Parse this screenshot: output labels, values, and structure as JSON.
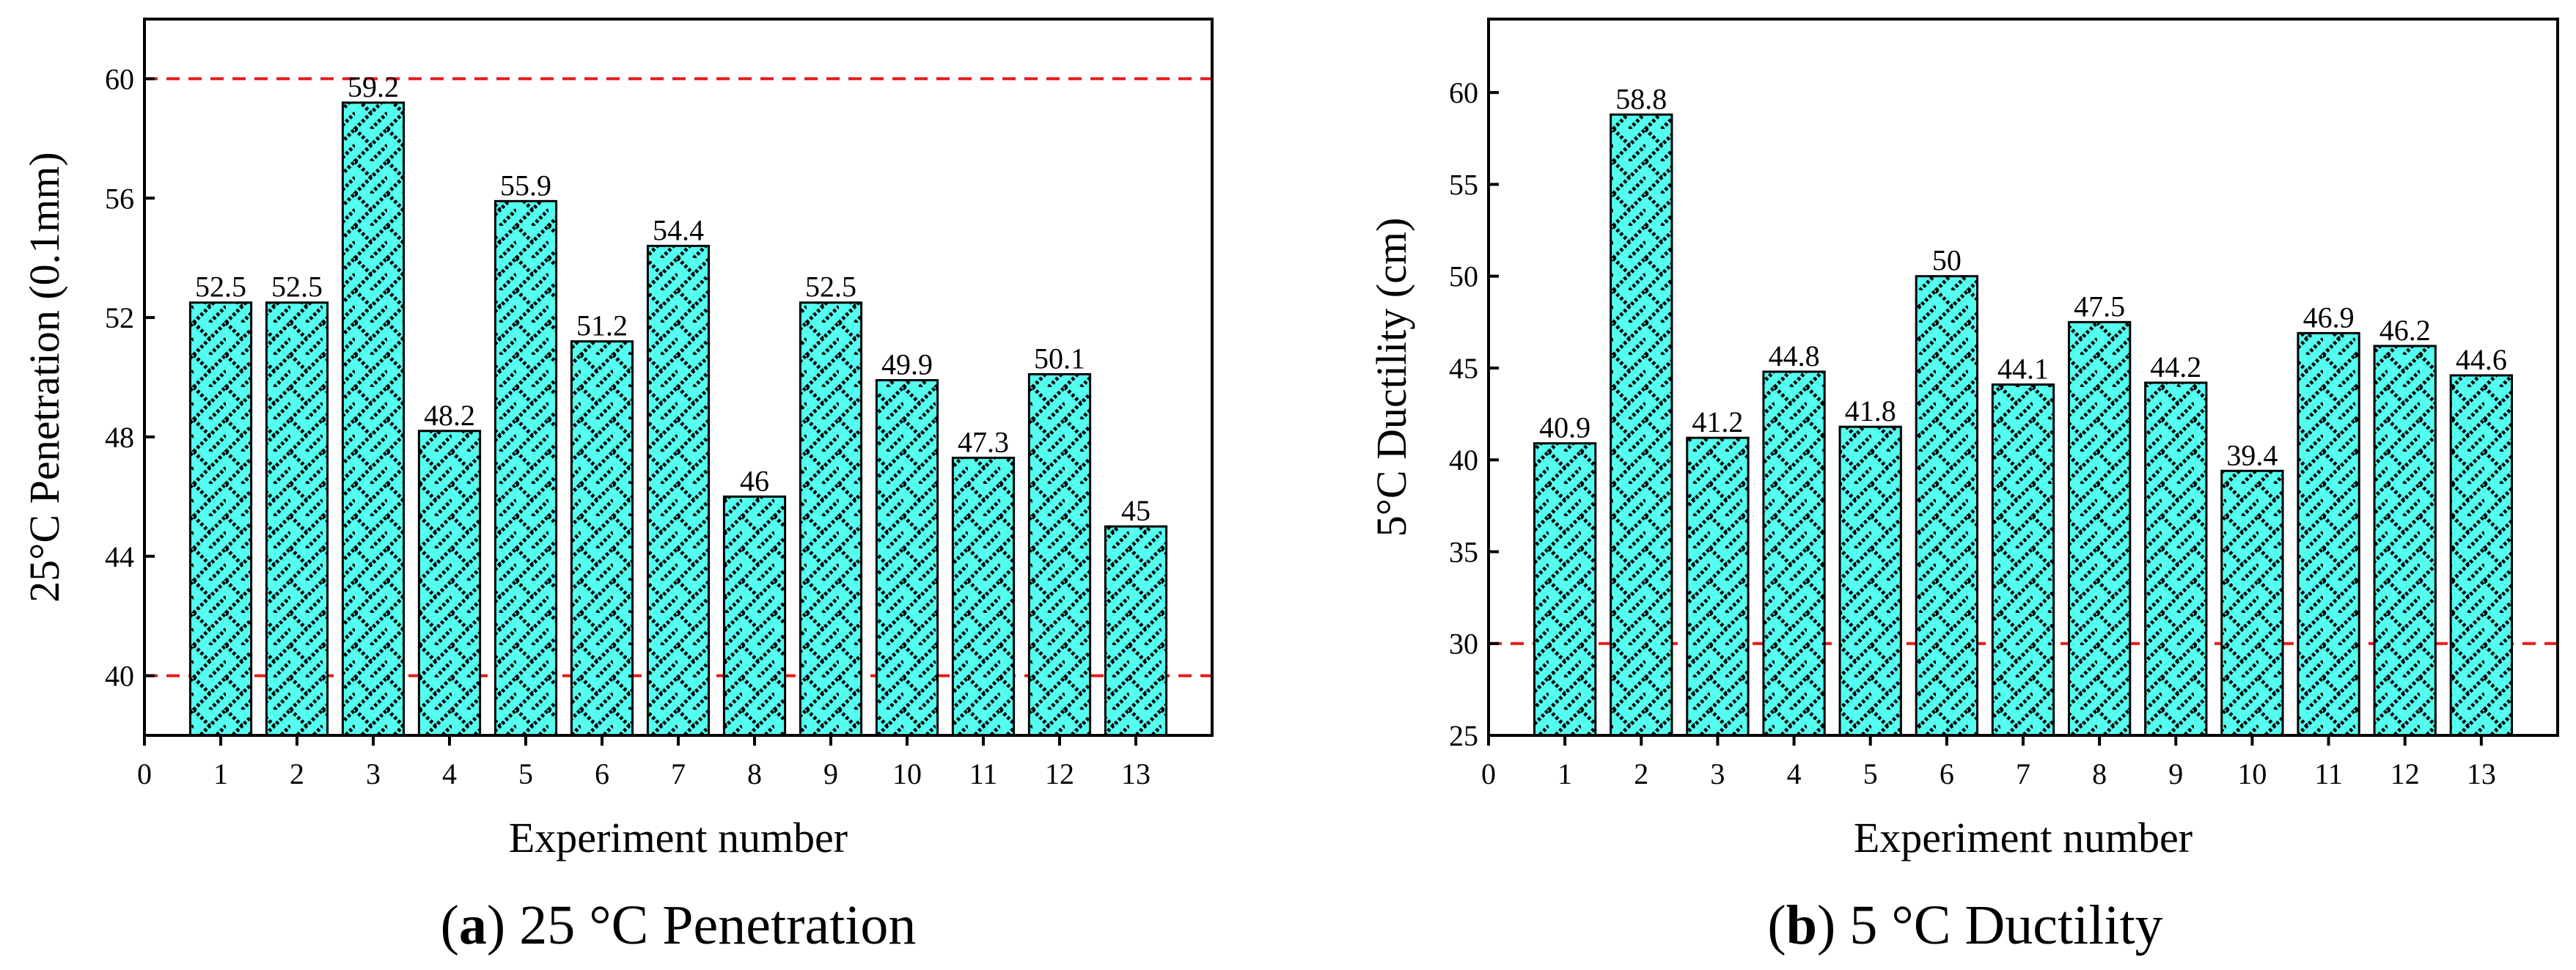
{
  "chart_data": [
    {
      "type": "bar",
      "caption": {
        "letter": "a",
        "text": "25 °C Penetration"
      },
      "xlabel": "Experiment number",
      "ylabel": "25°C Penetration (0.1mm)",
      "x_ticks": [
        "0",
        "1",
        "2",
        "3",
        "4",
        "5",
        "6",
        "7",
        "8",
        "9",
        "10",
        "11",
        "12",
        "13"
      ],
      "x_range": [
        0,
        14
      ],
      "categories": [
        "1",
        "2",
        "3",
        "4",
        "5",
        "6",
        "7",
        "8",
        "9",
        "10",
        "11",
        "12",
        "13"
      ],
      "values": [
        52.5,
        52.5,
        59.2,
        48.2,
        55.9,
        51.2,
        54.4,
        46,
        52.5,
        49.9,
        47.3,
        50.1,
        45
      ],
      "value_labels": [
        "52.5",
        "52.5",
        "59.2",
        "48.2",
        "55.9",
        "51.2",
        "54.4",
        "46",
        "52.5",
        "49.9",
        "47.3",
        "50.1",
        "45"
      ],
      "ylim": [
        38,
        62
      ],
      "y_ticks": [
        40,
        44,
        48,
        52,
        56,
        60
      ],
      "y_tick_labels": [
        "40",
        "44",
        "48",
        "52",
        "56",
        "60"
      ],
      "reference_lines": [
        60,
        40
      ],
      "bar_color": "#55FFF0",
      "pattern_color": "#000000",
      "reference_line_color": "#E8191A",
      "grid": false
    },
    {
      "type": "bar",
      "caption": {
        "letter": "b",
        "text": "5 °C Ductility"
      },
      "xlabel": "Experiment number",
      "ylabel": "5°C Ductility (cm)",
      "x_ticks": [
        "0",
        "1",
        "2",
        "3",
        "4",
        "5",
        "6",
        "7",
        "8",
        "9",
        "10",
        "11",
        "12",
        "13"
      ],
      "x_range": [
        0,
        14
      ],
      "categories": [
        "1",
        "2",
        "3",
        "4",
        "5",
        "6",
        "7",
        "8",
        "9",
        "10",
        "11",
        "12",
        "13"
      ],
      "values": [
        40.9,
        58.8,
        41.2,
        44.8,
        41.8,
        50,
        44.1,
        47.5,
        44.2,
        39.4,
        46.9,
        46.2,
        44.6
      ],
      "value_labels": [
        "40.9",
        "58.8",
        "41.2",
        "44.8",
        "41.8",
        "50",
        "44.1",
        "47.5",
        "44.2",
        "39.4",
        "46.9",
        "46.2",
        "44.6"
      ],
      "ylim": [
        25,
        64
      ],
      "y_ticks": [
        25,
        30,
        35,
        40,
        45,
        50,
        55,
        60
      ],
      "y_tick_labels": [
        "25",
        "30",
        "35",
        "40",
        "45",
        "50",
        "55",
        "60"
      ],
      "reference_lines": [
        30
      ],
      "bar_color": "#55FFF0",
      "pattern_color": "#000000",
      "reference_line_color": "#E8191A",
      "grid": false
    }
  ]
}
